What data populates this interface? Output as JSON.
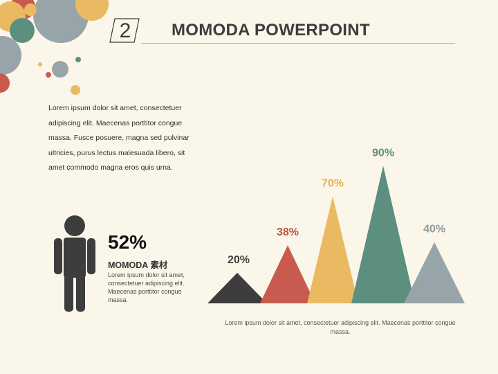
{
  "slide": {
    "number": "2",
    "title": "MOMODA POWERPOINT",
    "intro_text": "Lorem ipsum dolor sit amet, consectetuer adipiscing elit. Maecenas porttitor congue massa. Fusce posuere, magna sed pulvinar ultricies, purus lectus malesuada libero, sit amet commodo magna eros quis urna.",
    "stat": {
      "percent": "52%",
      "title": "MOMODA 素材",
      "text": "Lorem ipsum dolor sit amet, consectetuer adipiscing elit. Maecenas porttitor congue massa."
    },
    "caption": "Lorem ipsum dolor sit amet, consectetuer adipiscing elit. Maecenas porttitor congue massa.",
    "icons": [
      "person-icon"
    ],
    "palette": {
      "dark": "#3d3d3d",
      "red": "#c85a4f",
      "yellow": "#e9ba62",
      "green": "#5d8f80",
      "gray": "#97a4a9",
      "background": "#fbf6ea"
    }
  },
  "chart_data": {
    "type": "bar",
    "style": "triangle",
    "categories": [
      "",
      "",
      "",
      "",
      ""
    ],
    "values": [
      20,
      38,
      70,
      90,
      40
    ],
    "labels": [
      "20%",
      "38%",
      "70%",
      "90%",
      "40%"
    ],
    "colors": [
      "#3d3d3d",
      "#c85a4f",
      "#e9ba62",
      "#5d8f80",
      "#97a4a9"
    ],
    "ylim": [
      0,
      100
    ],
    "grid": false,
    "legend": "none"
  }
}
